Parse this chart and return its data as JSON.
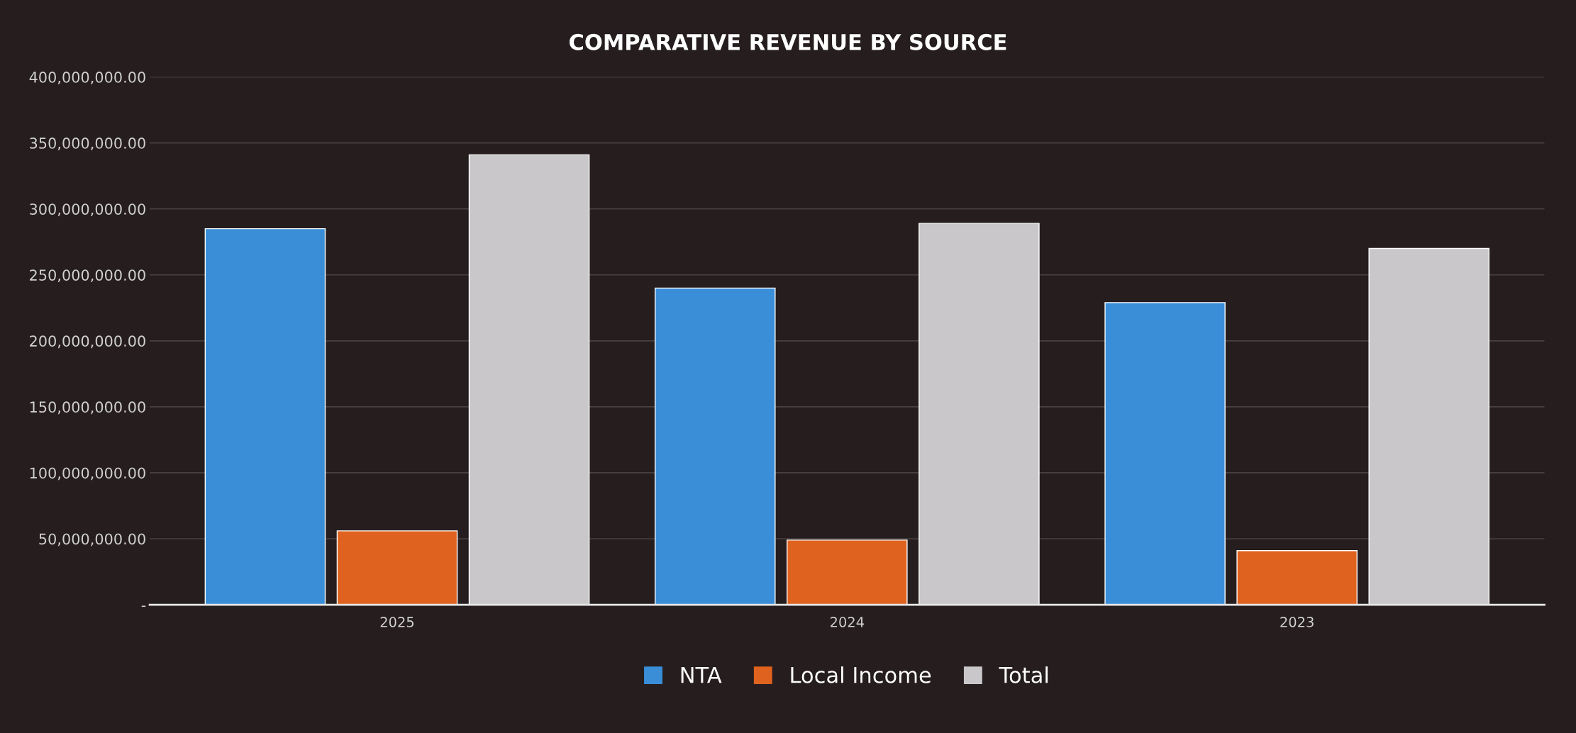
{
  "chart_data": {
    "type": "bar",
    "title": "COMPARATIVE REVENUE BY SOURCE",
    "categories": [
      "2025",
      "2024",
      "2023"
    ],
    "series": [
      {
        "name": "NTA",
        "color": "#3a8ed8",
        "values": [
          285000000,
          240000000,
          229000000
        ]
      },
      {
        "name": "Local Income",
        "color": "#e0621f",
        "values": [
          56000000,
          49000000,
          41000000
        ]
      },
      {
        "name": "Total",
        "color": "#c9c7c9",
        "values": [
          341000000,
          289000000,
          270000000
        ]
      }
    ],
    "ylim": [
      0,
      400000000
    ],
    "yticks": [
      {
        "value": 0,
        "label": "-"
      },
      {
        "value": 50000000,
        "label": "50,000,000.00"
      },
      {
        "value": 100000000,
        "label": "100,000,000.00"
      },
      {
        "value": 150000000,
        "label": "150,000,000.00"
      },
      {
        "value": 200000000,
        "label": "200,000,000.00"
      },
      {
        "value": 250000000,
        "label": "250,000,000.00"
      },
      {
        "value": 300000000,
        "label": "300,000,000.00"
      },
      {
        "value": 350000000,
        "label": "350,000,000.00"
      },
      {
        "value": 400000000,
        "label": "400,000,000.00"
      }
    ],
    "grid": "y",
    "legend": "bottom"
  }
}
